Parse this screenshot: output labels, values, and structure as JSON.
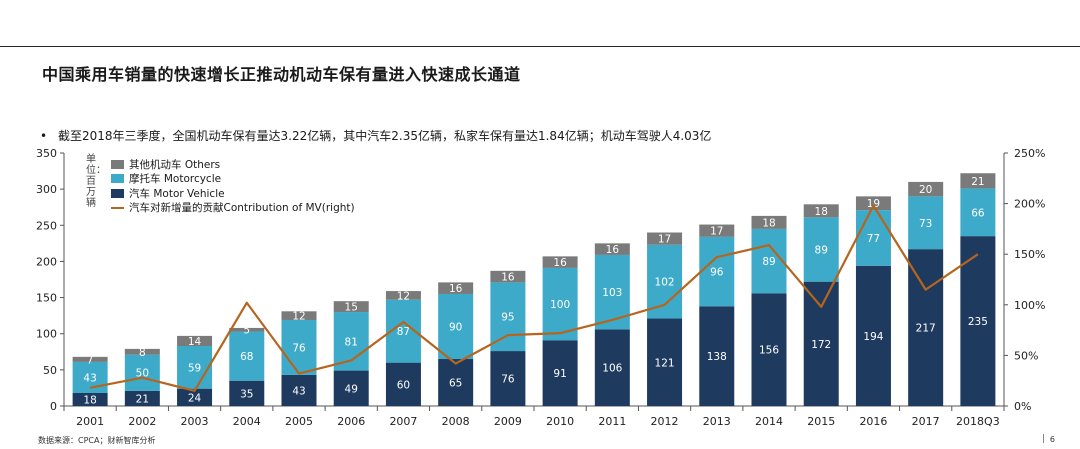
{
  "header": {
    "title": "中国乘用车销量的快速增长正推动机动车保有量进入快速成长通道",
    "bullet": "截至2018年三季度，全国机动车保有量达3.22亿辆，其中汽车2.35亿辆，私家车保有量达1.84亿辆；机动车驾驶人4.03亿"
  },
  "footer": {
    "source": "数据来源：CPCA；财新智库分析",
    "page": "6"
  },
  "chart_data": {
    "type": "bar",
    "stacked": true,
    "unit_label": "单位：百万辆",
    "categories": [
      "2001",
      "2002",
      "2003",
      "2004",
      "2005",
      "2006",
      "2007",
      "2008",
      "2009",
      "2010",
      "2011",
      "2012",
      "2013",
      "2014",
      "2015",
      "2016",
      "2017",
      "2018Q3"
    ],
    "series": [
      {
        "name": "汽车 Motor Vehicle",
        "color": "#1f3a5f",
        "label_color": "#ffffff",
        "values": [
          18,
          21,
          24,
          35,
          43,
          49,
          60,
          65,
          76,
          91,
          106,
          121,
          138,
          156,
          172,
          194,
          217,
          235
        ]
      },
      {
        "name": "摩托车 Motorcycle",
        "color": "#3eaac9",
        "label_color": "#ffffff",
        "values": [
          43,
          50,
          59,
          68,
          76,
          81,
          87,
          90,
          95,
          100,
          103,
          102,
          96,
          89,
          89,
          77,
          73,
          66
        ]
      },
      {
        "name": "其他机动车 Others",
        "color": "#7a7a7a",
        "label_color": "#ffffff",
        "values": [
          7,
          8,
          14,
          5,
          12,
          15,
          12,
          16,
          16,
          16,
          16,
          17,
          17,
          18,
          18,
          19,
          20,
          21
        ]
      }
    ],
    "line_series": {
      "name": "汽车对新增量的贡献Contribution of MV(right)",
      "color": "#b5651d",
      "axis": "right",
      "values": [
        18,
        28,
        15,
        102,
        32,
        45,
        83,
        42,
        70,
        72,
        85,
        100,
        147,
        159,
        98,
        198,
        115,
        150
      ]
    },
    "y_left": {
      "min": 0,
      "max": 350,
      "ticks": [
        0,
        50,
        100,
        150,
        200,
        250,
        300,
        350
      ]
    },
    "y_right": {
      "min": 0,
      "max": 250,
      "ticks": [
        "0%",
        "50%",
        "100%",
        "150%",
        "200%",
        "250%"
      ]
    },
    "legend_position": "top-left"
  }
}
